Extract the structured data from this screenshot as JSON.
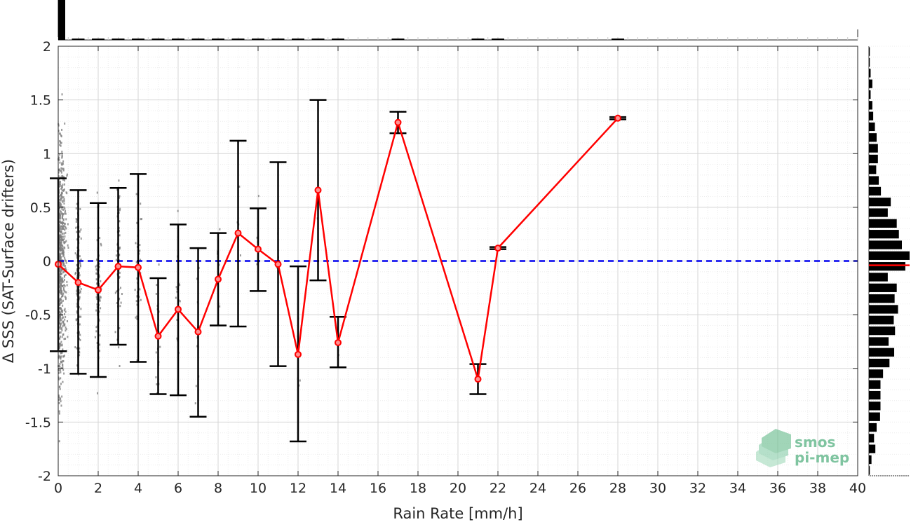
{
  "chart_data": {
    "type": "line",
    "xlabel": "Rain Rate [mm/h]",
    "ylabel": "Δ SSS (SAT-Surface drifters)",
    "xlim": [
      0,
      40
    ],
    "ylim": [
      -2,
      2
    ],
    "x_ticks": [
      "0",
      "2",
      "4",
      "6",
      "8",
      "10",
      "12",
      "14",
      "16",
      "18",
      "20",
      "22",
      "24",
      "26",
      "28",
      "30",
      "32",
      "34",
      "36",
      "38",
      "40"
    ],
    "y_ticks": [
      "-2",
      "-1.5",
      "-1",
      "-0.5",
      "0",
      "0.5",
      "1",
      "1.5",
      "2"
    ],
    "grid": true,
    "reference_line": {
      "y": 0,
      "color": "#0000ee",
      "style": "dashed"
    },
    "series": [
      {
        "color": "#ff0000",
        "x": [
          0,
          1,
          2,
          3,
          4,
          5,
          6,
          7,
          8,
          9,
          10,
          11,
          12,
          13,
          14,
          17,
          21,
          22,
          28
        ],
        "y": [
          -0.03,
          -0.2,
          -0.27,
          -0.05,
          -0.06,
          -0.7,
          -0.45,
          -0.66,
          -0.17,
          0.26,
          0.11,
          -0.03,
          -0.87,
          0.66,
          -0.76,
          1.29,
          -1.1,
          0.12,
          1.33
        ],
        "err_low": [
          -0.84,
          -1.05,
          -1.08,
          -0.78,
          -0.94,
          -1.24,
          -1.25,
          -1.45,
          -0.6,
          -0.61,
          -0.28,
          -0.98,
          -1.68,
          -0.18,
          -0.99,
          1.19,
          -1.24,
          0.11,
          1.32
        ],
        "err_high": [
          0.77,
          0.66,
          0.54,
          0.68,
          0.81,
          -0.16,
          0.34,
          0.12,
          0.26,
          1.12,
          0.49,
          0.92,
          -0.05,
          1.5,
          -0.52,
          1.39,
          -0.96,
          0.13,
          1.34
        ]
      }
    ],
    "scatter_color": "#808080",
    "top_histogram": {
      "x": [
        0,
        1,
        2,
        3,
        4,
        5,
        6,
        7,
        8,
        9,
        10,
        11,
        12,
        13,
        14,
        17,
        21,
        22,
        28
      ],
      "counts": [
        1000,
        30,
        14,
        12,
        10,
        9,
        8,
        7,
        7,
        6,
        6,
        5,
        5,
        4,
        4,
        3,
        2,
        2,
        1
      ]
    },
    "right_histogram": {
      "y": [
        1.95,
        1.85,
        1.75,
        1.65,
        1.55,
        1.45,
        1.35,
        1.25,
        1.15,
        1.05,
        0.95,
        0.85,
        0.75,
        0.65,
        0.55,
        0.45,
        0.35,
        0.25,
        0.15,
        0.05,
        -0.05,
        -0.15,
        -0.25,
        -0.35,
        -0.45,
        -0.55,
        -0.65,
        -0.75,
        -0.85,
        -0.95,
        -1.05,
        -1.15,
        -1.25,
        -1.35,
        -1.45,
        -1.55,
        -1.65,
        -1.75,
        -1.85,
        -1.95
      ],
      "counts": [
        2,
        2,
        4,
        8,
        4,
        8,
        10,
        14,
        18,
        21,
        21,
        17,
        23,
        28,
        51,
        44,
        65,
        70,
        77,
        95,
        85,
        44,
        65,
        60,
        68,
        58,
        61,
        46,
        59,
        48,
        33,
        27,
        27,
        27,
        26,
        18,
        12,
        15,
        6,
        2
      ],
      "median": -0.04,
      "median_color": "#ff0000"
    }
  },
  "logo": {
    "line1": "smos",
    "line2": "pi-mep"
  }
}
